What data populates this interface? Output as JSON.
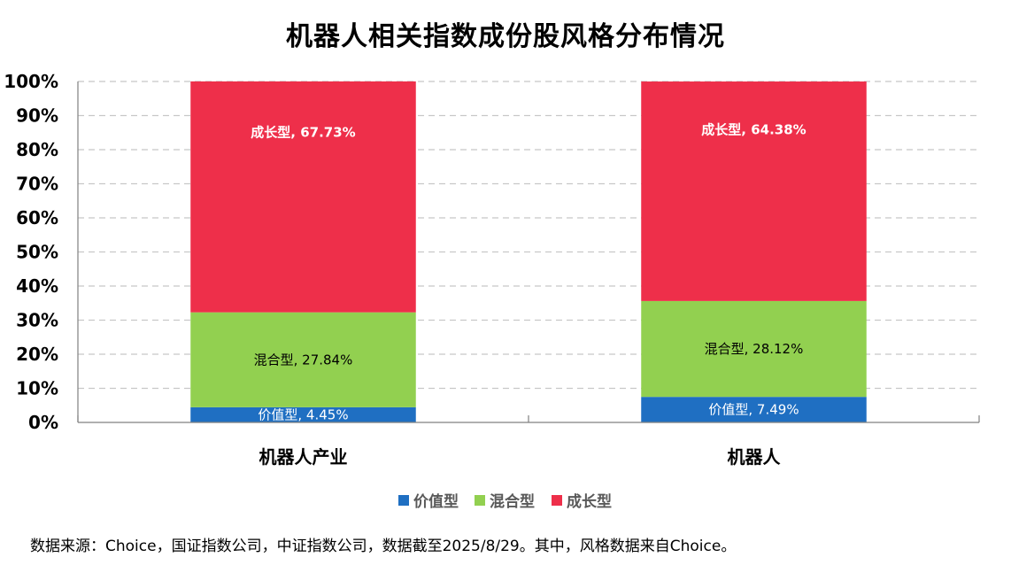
{
  "footnote": "数据来源：Choice，国证指数公司，中证指数公司，数据截至2025/8/29。其中，风格数据来自Choice。",
  "chart_data": {
    "type": "bar",
    "stacked": true,
    "title": "机器人相关指数成份股风格分布情况",
    "categories": [
      "机器人产业",
      "机器人"
    ],
    "ylim": [
      0,
      100
    ],
    "yticks": [
      "0%",
      "10%",
      "20%",
      "30%",
      "40%",
      "50%",
      "60%",
      "70%",
      "80%",
      "90%",
      "100%"
    ],
    "grid": true,
    "legend_position": "bottom",
    "series": [
      {
        "name": "价值型",
        "color": "#1f6fc2",
        "values": [
          4.45,
          7.49
        ],
        "labels": [
          "价值型, 4.45%",
          "价值型, 7.49%"
        ],
        "label_color": "#ffffff"
      },
      {
        "name": "混合型",
        "color": "#92d050",
        "values": [
          27.84,
          28.12
        ],
        "labels": [
          "混合型, 27.84%",
          "混合型, 28.12%"
        ],
        "label_color": "#000000"
      },
      {
        "name": "成长型",
        "color": "#ee2f4a",
        "values": [
          67.73,
          64.38
        ],
        "labels": [
          "成长型, 67.73%",
          "成长型, 64.38%"
        ],
        "label_color": "#ffffff"
      }
    ]
  }
}
